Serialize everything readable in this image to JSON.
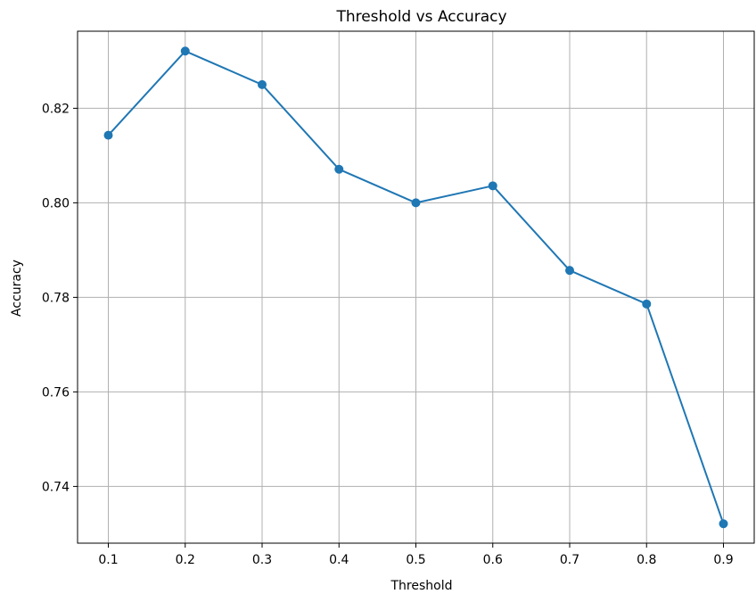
{
  "chart_data": {
    "type": "line",
    "title": "Threshold vs Accuracy",
    "xlabel": "Threshold",
    "ylabel": "Accuracy",
    "x": [
      0.1,
      0.2,
      0.3,
      0.4,
      0.5,
      0.6,
      0.7,
      0.8,
      0.9
    ],
    "series": [
      {
        "name": "",
        "values": [
          0.8143,
          0.8321,
          0.825,
          0.8071,
          0.8,
          0.8036,
          0.7857,
          0.7786,
          0.7321
        ],
        "color": "#1f77b4",
        "marker": "circle"
      }
    ],
    "xticks": [
      "0.1",
      "0.2",
      "0.3",
      "0.4",
      "0.5",
      "0.6",
      "0.7",
      "0.8",
      "0.9"
    ],
    "yticks": [
      "0.74",
      "0.76",
      "0.78",
      "0.80",
      "0.82"
    ],
    "xlim": [
      0.06,
      0.94
    ],
    "ylim": [
      0.728,
      0.8363
    ],
    "grid": true,
    "legend": "none"
  }
}
